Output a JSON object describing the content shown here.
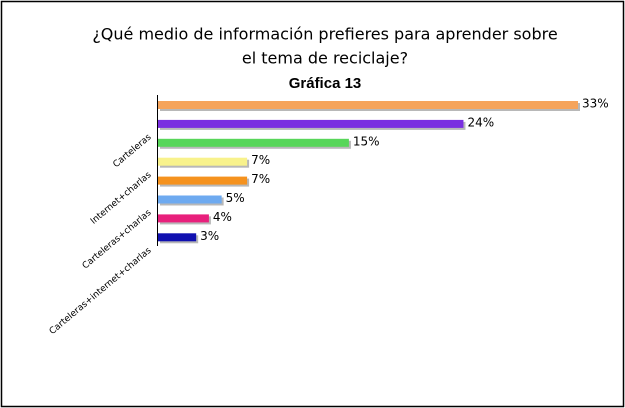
{
  "chart_data": {
    "type": "bar",
    "orientation": "horizontal",
    "title": [
      "¿Qué medio de información prefieres para aprender sobre",
      "el tema de reciclaje?"
    ],
    "subtitle": "Gráfica 13",
    "categories": [
      null,
      "Carteleras",
      null,
      "Internet+charlas",
      null,
      "Carteleras+charlas",
      null,
      "Carteleras+internet+charlas"
    ],
    "values": [
      33,
      24,
      15,
      7,
      7,
      5,
      4,
      3
    ],
    "value_labels": [
      "33%",
      "24%",
      "15%",
      "7%",
      "7%",
      "5%",
      "4%",
      "3%"
    ],
    "colors": [
      "#f5a45c",
      "#7a30e0",
      "#58d65a",
      "#f8f28c",
      "#f5921e",
      "#6eaaf0",
      "#e8207c",
      "#1010b0"
    ],
    "xlim": [
      0,
      33
    ]
  }
}
